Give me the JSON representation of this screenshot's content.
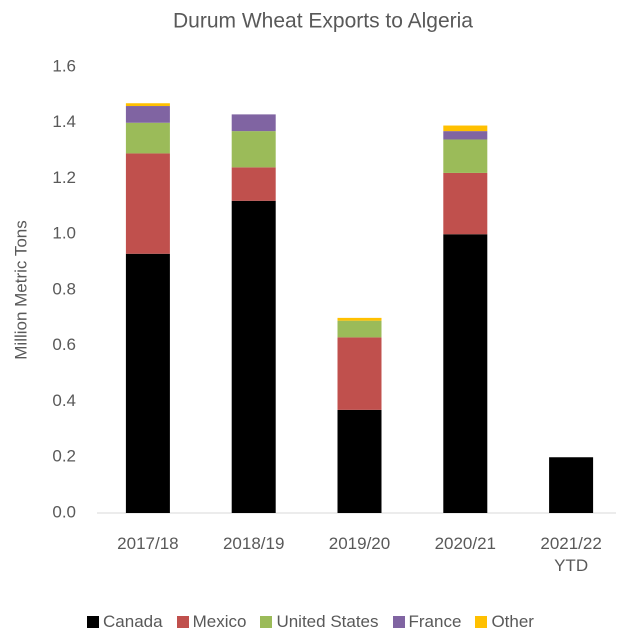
{
  "chart_data": {
    "type": "bar",
    "stacked": true,
    "title": "Durum Wheat Exports to Algeria",
    "y_label": "Million Metric Tons",
    "categories": [
      "2017/18",
      "2018/19",
      "2019/20",
      "2020/21",
      "2021/22 YTD"
    ],
    "series": [
      {
        "name": "Canada",
        "color": "#000000",
        "values": [
          0.93,
          1.12,
          0.37,
          1.0,
          0.2
        ]
      },
      {
        "name": "Mexico",
        "color": "#c0504d",
        "values": [
          0.36,
          0.12,
          0.26,
          0.22,
          0
        ]
      },
      {
        "name": "United States",
        "color": "#9bbb59",
        "values": [
          0.11,
          0.13,
          0.06,
          0.12,
          0
        ]
      },
      {
        "name": "France",
        "color": "#8064a2",
        "values": [
          0.06,
          0.06,
          0,
          0.03,
          0
        ]
      },
      {
        "name": "Other",
        "color": "#ffc000",
        "values": [
          0.01,
          0,
          0.01,
          0.02,
          0
        ]
      }
    ],
    "ylim": [
      0,
      1.6
    ],
    "yticks": [
      {
        "value": 0,
        "label": "0.0"
      },
      0.2,
      0.4,
      0.6,
      0.8,
      {
        "value": 1,
        "label": "1.0"
      },
      1.2,
      1.4,
      1.6
    ],
    "grid": false
  }
}
